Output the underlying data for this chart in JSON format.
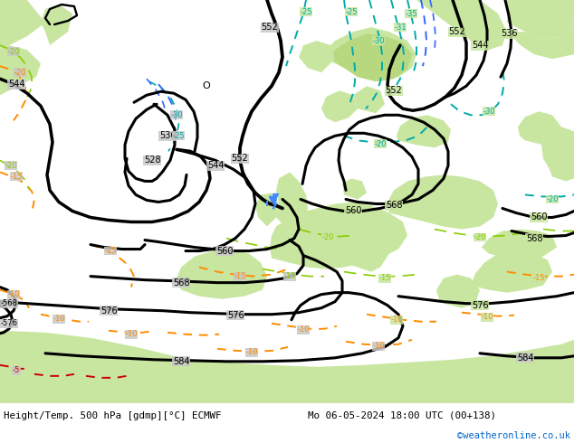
{
  "title_left": "Height/Temp. 500 hPa [gdmp][°C] ECMWF",
  "title_right": "Mo 06-05-2024 18:00 UTC (00+138)",
  "credit": "©weatheronline.co.uk",
  "credit_color": "#0066cc",
  "land_green": "#c8e6a0",
  "land_green2": "#b8d880",
  "ocean_gray": "#c8c8c8",
  "bg_gray": "#d0d0d0",
  "z500_color": "#000000",
  "temp_orange": "#ff8c00",
  "temp_red": "#cc0000",
  "temp_teal": "#00aaaa",
  "temp_blue": "#3366ff",
  "green_dash": "#88cc00",
  "rain_blue": "#4488ff",
  "figsize": [
    6.34,
    4.9
  ],
  "dpi": 100
}
